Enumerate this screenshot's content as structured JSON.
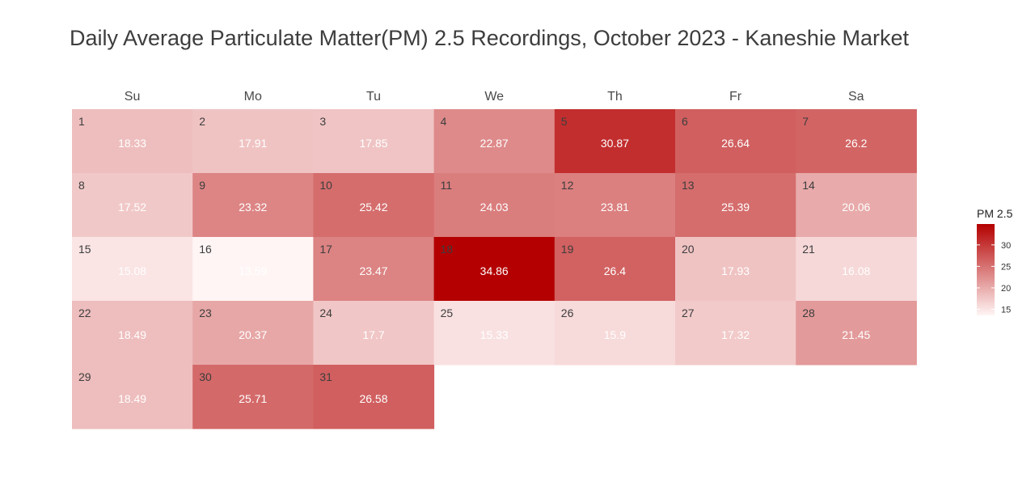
{
  "chart_data": {
    "type": "heatmap",
    "title": "Daily Average Particulate Matter(PM) 2.5 Recordings, October 2023 - Kaneshie Market",
    "weekdays": [
      "Su",
      "Mo",
      "Tu",
      "We",
      "Th",
      "Fr",
      "Sa"
    ],
    "first_weekday_index": 0,
    "days": [
      1,
      2,
      3,
      4,
      5,
      6,
      7,
      8,
      9,
      10,
      11,
      12,
      13,
      14,
      15,
      16,
      17,
      18,
      19,
      20,
      21,
      22,
      23,
      24,
      25,
      26,
      27,
      28,
      29,
      30,
      31
    ],
    "values": [
      18.33,
      17.91,
      17.85,
      22.87,
      30.87,
      26.64,
      26.2,
      17.52,
      23.32,
      25.42,
      24.03,
      23.81,
      25.39,
      20.06,
      15.08,
      13.59,
      23.47,
      34.86,
      26.4,
      17.93,
      16.08,
      18.49,
      20.37,
      17.7,
      15.33,
      15.9,
      17.32,
      21.45,
      18.49,
      25.71,
      26.58
    ],
    "color_scale": {
      "low": "#fff5f5",
      "high": "#b40000",
      "domain": [
        13.59,
        34.86
      ]
    },
    "legend": {
      "title": "PM 2.5",
      "ticks": [
        15,
        20,
        25,
        30
      ],
      "placement": "right"
    }
  }
}
